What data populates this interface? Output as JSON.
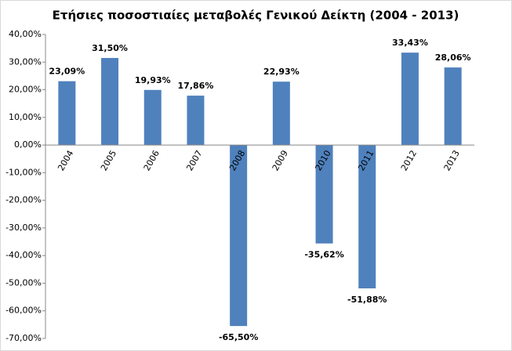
{
  "chart_data": {
    "type": "bar",
    "title": "Ετήσιες ποσοστιαίες μεταβολές Γενικού Δείκτη (2004 - 2013)",
    "categories": [
      "2004",
      "2005",
      "2006",
      "2007",
      "2008",
      "2009",
      "2010",
      "2011",
      "2012",
      "2013"
    ],
    "values": [
      23.09,
      31.5,
      19.93,
      17.86,
      -65.5,
      22.93,
      -35.62,
      -51.88,
      33.43,
      28.06
    ],
    "value_labels": [
      "23,09%",
      "31,50%",
      "19,93%",
      "17,86%",
      "-65,50%",
      "22,93%",
      "-35,62%",
      "-51,88%",
      "33,43%",
      "28,06%"
    ],
    "color": "#4f81bd",
    "ylim": [
      -70,
      40
    ],
    "yticks": [
      {
        "value": 40,
        "label": "40,00%"
      },
      {
        "value": 30,
        "label": "30,00%"
      },
      {
        "value": 20,
        "label": "20,00%"
      },
      {
        "value": 10,
        "label": "10,00%"
      },
      {
        "value": 0,
        "label": "0,00%"
      },
      {
        "value": -10,
        "label": "-10,00%"
      },
      {
        "value": -20,
        "label": "-20,00%"
      },
      {
        "value": -30,
        "label": "-30,00%"
      },
      {
        "value": -40,
        "label": "-40,00%"
      },
      {
        "value": -50,
        "label": "-50,00%"
      },
      {
        "value": -60,
        "label": "-60,00%"
      },
      {
        "value": -70,
        "label": "-70,00%"
      }
    ],
    "grid": false
  }
}
